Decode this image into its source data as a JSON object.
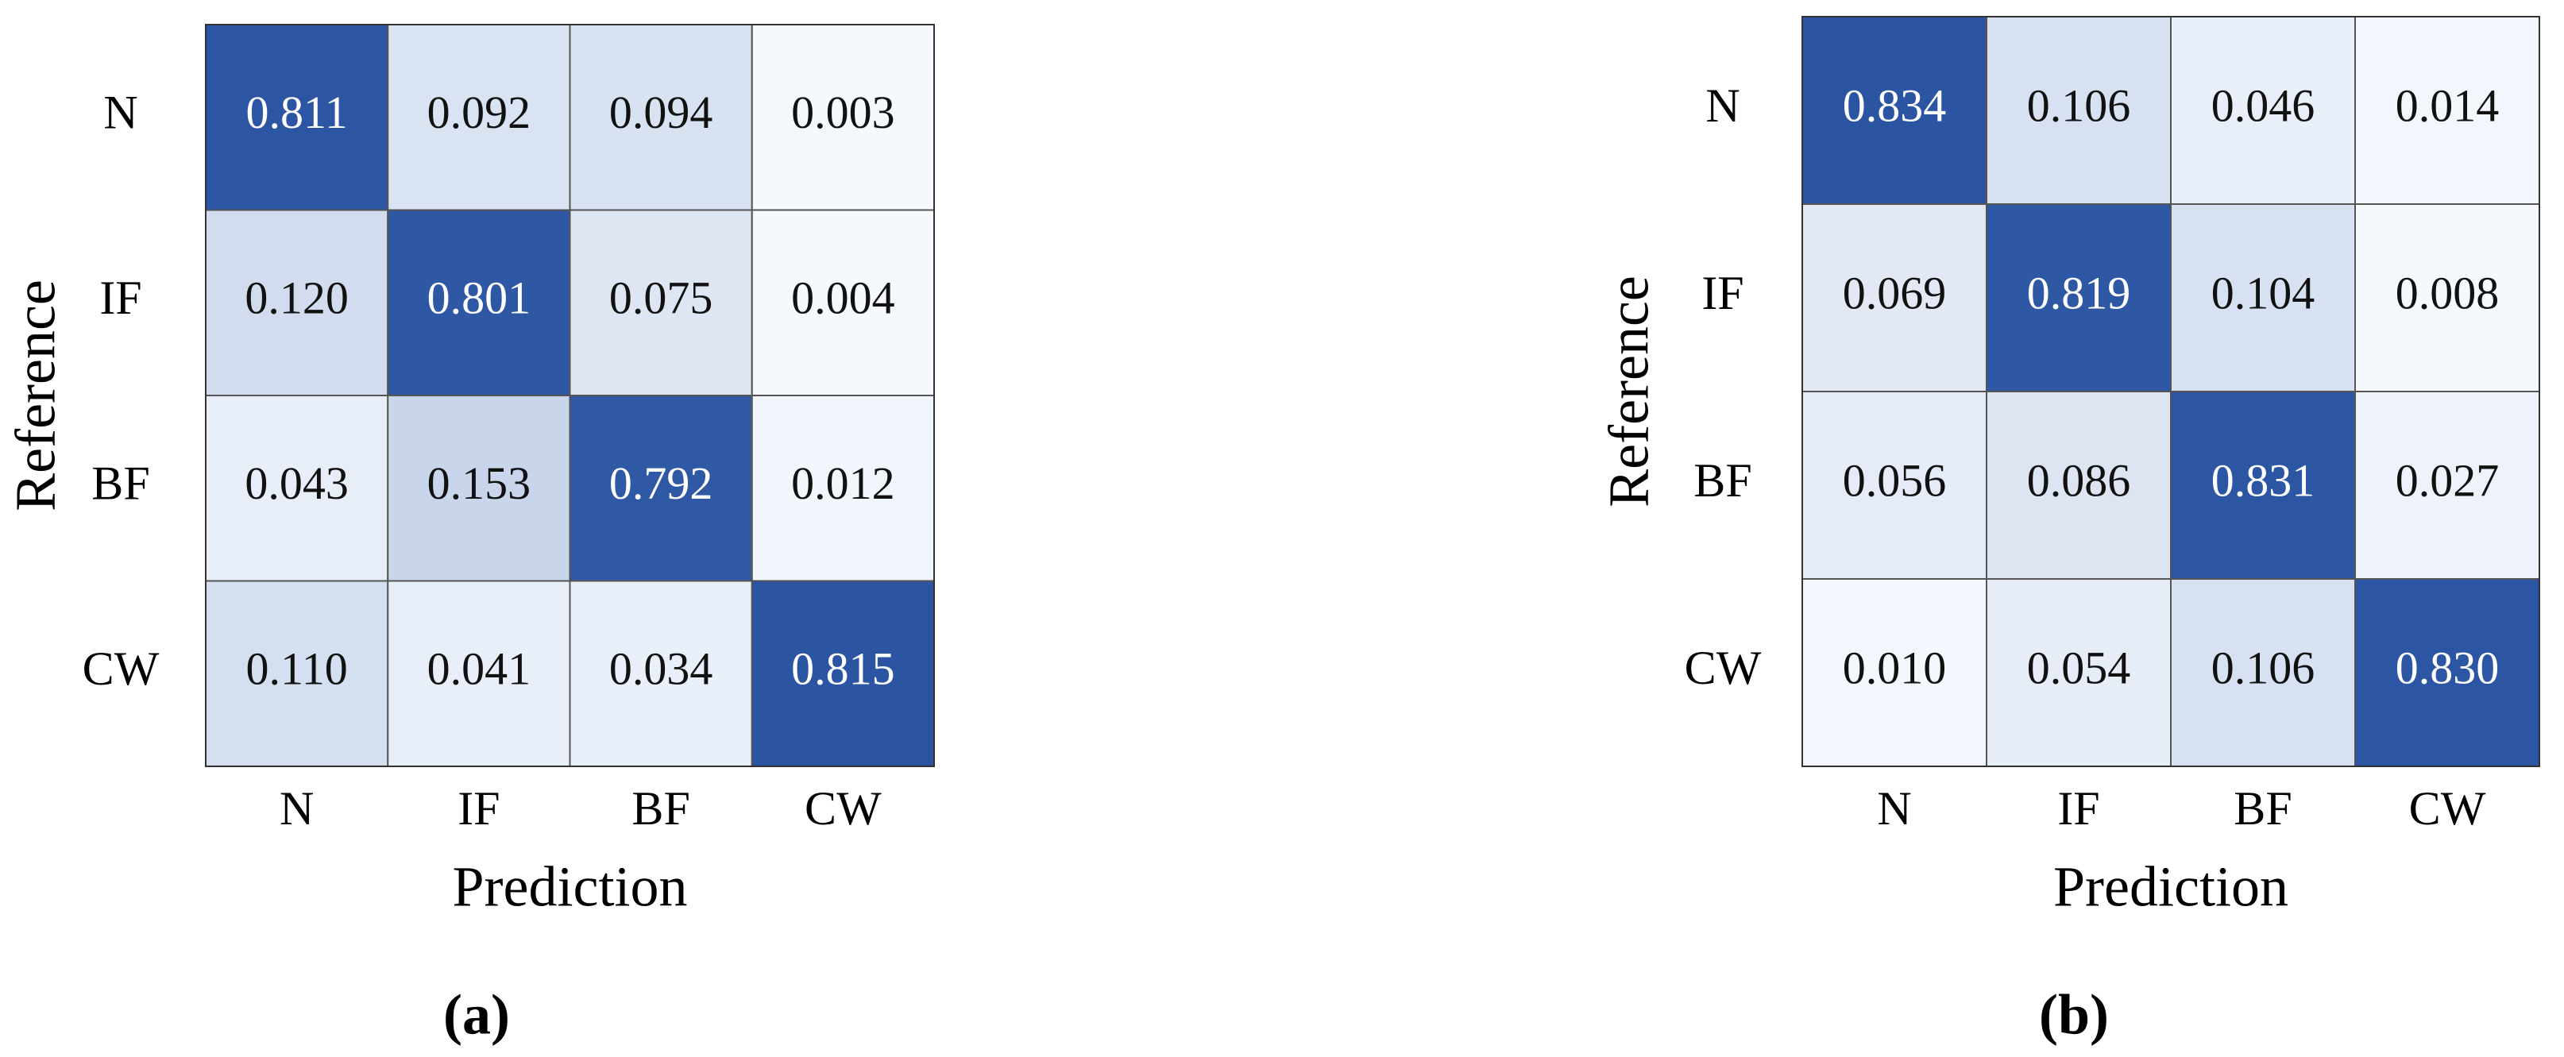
{
  "chart_data": [
    {
      "type": "heatmap",
      "caption": "(a)",
      "x_label": "Prediction",
      "y_label": "Reference",
      "x_categories": [
        "N",
        "IF",
        "BF",
        "CW"
      ],
      "y_categories": [
        "N",
        "IF",
        "BF",
        "CW"
      ],
      "values": [
        [
          0.811,
          0.092,
          0.094,
          0.003
        ],
        [
          0.12,
          0.801,
          0.075,
          0.004
        ],
        [
          0.043,
          0.153,
          0.792,
          0.012
        ],
        [
          0.11,
          0.041,
          0.034,
          0.815
        ]
      ],
      "value_labels": [
        [
          "0.811",
          "0.092",
          "0.094",
          "0.003"
        ],
        [
          "0.120",
          "0.801",
          "0.075",
          "0.004"
        ],
        [
          "0.043",
          "0.153",
          "0.792",
          "0.012"
        ],
        [
          "0.110",
          "0.041",
          "0.034",
          "0.815"
        ]
      ],
      "colors": [
        "#f5f9fe",
        "#2b55a3"
      ]
    },
    {
      "type": "heatmap",
      "caption": "(b)",
      "x_label": "Prediction",
      "y_label": "Reference",
      "x_categories": [
        "N",
        "IF",
        "BF",
        "CW"
      ],
      "y_categories": [
        "N",
        "IF",
        "BF",
        "CW"
      ],
      "values": [
        [
          0.834,
          0.106,
          0.046,
          0.014
        ],
        [
          0.069,
          0.819,
          0.104,
          0.008
        ],
        [
          0.056,
          0.086,
          0.831,
          0.027
        ],
        [
          0.01,
          0.054,
          0.106,
          0.83
        ]
      ],
      "value_labels": [
        [
          "0.834",
          "0.106",
          "0.046",
          "0.014"
        ],
        [
          "0.069",
          "0.819",
          "0.104",
          "0.008"
        ],
        [
          "0.056",
          "0.086",
          "0.831",
          "0.027"
        ],
        [
          "0.010",
          "0.054",
          "0.106",
          "0.830"
        ]
      ],
      "colors": [
        "#f5f9fe",
        "#2b55a3"
      ]
    }
  ]
}
